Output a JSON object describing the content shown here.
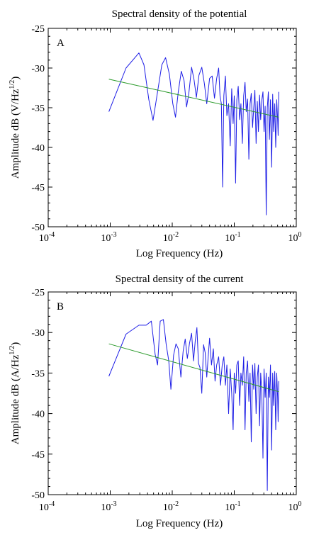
{
  "chart_data": [
    {
      "type": "line",
      "panel_label": "A",
      "title": "Spectral density of the potential",
      "xlabel": "Log Frequency (Hz)",
      "ylabel": {
        "prefix": "Amplitude dB (V/Hz",
        "sup": "1/2",
        "suffix": ")"
      },
      "xscale": "log",
      "xlim": [
        0.0001,
        1
      ],
      "ylim": [
        -50,
        -25
      ],
      "xticks": [
        {
          "value": 0.0001,
          "base": "10",
          "exp": "-4"
        },
        {
          "value": 0.001,
          "base": "10",
          "exp": "-3"
        },
        {
          "value": 0.01,
          "base": "10",
          "exp": "-2"
        },
        {
          "value": 0.1,
          "base": "10",
          "exp": "-1"
        },
        {
          "value": 1,
          "base": "10",
          "exp": "0"
        }
      ],
      "yticks": [
        -50,
        -45,
        -40,
        -35,
        -30,
        -25
      ],
      "series": [
        {
          "color": "#1f1fe6",
          "points": [
            [
              0.00095,
              -35.5
            ],
            [
              0.0018,
              -30.0
            ],
            [
              0.0029,
              -28.1
            ],
            [
              0.0035,
              -29.6
            ],
            [
              0.0042,
              -34.0
            ],
            [
              0.0049,
              -36.6
            ],
            [
              0.0058,
              -33.0
            ],
            [
              0.0068,
              -29.6
            ],
            [
              0.0078,
              -28.7
            ],
            [
              0.009,
              -30.8
            ],
            [
              0.0102,
              -34.5
            ],
            [
              0.0113,
              -36.2
            ],
            [
              0.0125,
              -33.0
            ],
            [
              0.014,
              -30.4
            ],
            [
              0.0155,
              -31.6
            ],
            [
              0.017,
              -34.9
            ],
            [
              0.0185,
              -33.2
            ],
            [
              0.0205,
              -29.9
            ],
            [
              0.0225,
              -31.5
            ],
            [
              0.0245,
              -33.7
            ],
            [
              0.027,
              -30.9
            ],
            [
              0.03,
              -29.9
            ],
            [
              0.033,
              -32.0
            ],
            [
              0.036,
              -34.5
            ],
            [
              0.04,
              -31.3
            ],
            [
              0.044,
              -31.0
            ],
            [
              0.048,
              -33.8
            ],
            [
              0.052,
              -31.3
            ],
            [
              0.056,
              -30.0
            ],
            [
              0.059,
              -33.5
            ],
            [
              0.062,
              -34.5
            ],
            [
              0.065,
              -45.0
            ],
            [
              0.068,
              -33.5
            ],
            [
              0.072,
              -31.0
            ],
            [
              0.076,
              -36.0
            ],
            [
              0.081,
              -34.5
            ],
            [
              0.086,
              -39.8
            ],
            [
              0.091,
              -32.6
            ],
            [
              0.096,
              -37.0
            ],
            [
              0.1,
              -33.5
            ],
            [
              0.105,
              -44.5
            ],
            [
              0.11,
              -34.0
            ],
            [
              0.116,
              -32.3
            ],
            [
              0.122,
              -36.5
            ],
            [
              0.128,
              -34.5
            ],
            [
              0.135,
              -39.5
            ],
            [
              0.142,
              -33.5
            ],
            [
              0.149,
              -31.8
            ],
            [
              0.156,
              -35.5
            ],
            [
              0.164,
              -33.9
            ],
            [
              0.172,
              -41.5
            ],
            [
              0.18,
              -34.5
            ],
            [
              0.188,
              -33.2
            ],
            [
              0.197,
              -37.5
            ],
            [
              0.206,
              -35.0
            ],
            [
              0.215,
              -32.8
            ],
            [
              0.225,
              -39.5
            ],
            [
              0.235,
              -34.2
            ],
            [
              0.245,
              -38.0
            ],
            [
              0.256,
              -33.4
            ],
            [
              0.267,
              -36.5
            ],
            [
              0.278,
              -34.0
            ],
            [
              0.29,
              -33.0
            ],
            [
              0.302,
              -38.0
            ],
            [
              0.315,
              -34.8
            ],
            [
              0.328,
              -48.5
            ],
            [
              0.341,
              -35.0
            ],
            [
              0.355,
              -33.0
            ],
            [
              0.369,
              -39.0
            ],
            [
              0.384,
              -34.0
            ],
            [
              0.4,
              -42.5
            ],
            [
              0.416,
              -33.3
            ],
            [
              0.432,
              -38.0
            ],
            [
              0.449,
              -34.5
            ],
            [
              0.466,
              -40.0
            ],
            [
              0.484,
              -34.0
            ],
            [
              0.5,
              -36.5
            ],
            [
              0.51,
              -38.5
            ],
            [
              0.52,
              -33.0
            ]
          ]
        },
        {
          "color": "#2c9b2c",
          "points": [
            [
              0.00095,
              -31.4
            ],
            [
              0.52,
              -36.2
            ]
          ]
        }
      ]
    },
    {
      "type": "line",
      "panel_label": "B",
      "title": "Spectral density of the current",
      "xlabel": "Log Frequency (Hz)",
      "ylabel": {
        "prefix": "Amplitude dB (A/Hz",
        "sup": "1/2",
        "suffix": ")"
      },
      "xscale": "log",
      "xlim": [
        0.0001,
        1
      ],
      "ylim": [
        -50,
        -25
      ],
      "xticks": [
        {
          "value": 0.0001,
          "base": "10",
          "exp": "-4"
        },
        {
          "value": 0.001,
          "base": "10",
          "exp": "-3"
        },
        {
          "value": 0.01,
          "base": "10",
          "exp": "-2"
        },
        {
          "value": 0.1,
          "base": "10",
          "exp": "-1"
        },
        {
          "value": 1,
          "base": "10",
          "exp": "0"
        }
      ],
      "yticks": [
        -50,
        -45,
        -40,
        -35,
        -30,
        -25
      ],
      "series": [
        {
          "color": "#1f1fe6",
          "points": [
            [
              0.00095,
              -35.4
            ],
            [
              0.0018,
              -30.2
            ],
            [
              0.0029,
              -29.1
            ],
            [
              0.0038,
              -29.1
            ],
            [
              0.0046,
              -28.6
            ],
            [
              0.0053,
              -32.7
            ],
            [
              0.0058,
              -34.0
            ],
            [
              0.0064,
              -28.6
            ],
            [
              0.0072,
              -28.4
            ],
            [
              0.008,
              -31.5
            ],
            [
              0.0088,
              -33.5
            ],
            [
              0.0095,
              -37.0
            ],
            [
              0.0105,
              -32.8
            ],
            [
              0.0115,
              -31.4
            ],
            [
              0.0125,
              -32.0
            ],
            [
              0.0138,
              -35.5
            ],
            [
              0.015,
              -32.3
            ],
            [
              0.0162,
              -30.8
            ],
            [
              0.0175,
              -33.2
            ],
            [
              0.019,
              -31.3
            ],
            [
              0.0205,
              -30.1
            ],
            [
              0.022,
              -33.5
            ],
            [
              0.0235,
              -31.0
            ],
            [
              0.025,
              -29.4
            ],
            [
              0.0265,
              -33.8
            ],
            [
              0.028,
              -34.3
            ],
            [
              0.03,
              -37.5
            ],
            [
              0.032,
              -31.5
            ],
            [
              0.034,
              -32.5
            ],
            [
              0.036,
              -35.5
            ],
            [
              0.038,
              -33.0
            ],
            [
              0.04,
              -30.7
            ],
            [
              0.043,
              -34.0
            ],
            [
              0.046,
              -32.0
            ],
            [
              0.049,
              -36.0
            ],
            [
              0.052,
              -34.0
            ],
            [
              0.056,
              -33.0
            ],
            [
              0.06,
              -36.5
            ],
            [
              0.064,
              -34.0
            ],
            [
              0.068,
              -33.0
            ],
            [
              0.072,
              -36.5
            ],
            [
              0.076,
              -34.0
            ],
            [
              0.081,
              -40.0
            ],
            [
              0.086,
              -34.5
            ],
            [
              0.091,
              -37.5
            ],
            [
              0.096,
              -42.0
            ],
            [
              0.1,
              -35.0
            ],
            [
              0.105,
              -37.5
            ],
            [
              0.11,
              -34.0
            ],
            [
              0.116,
              -33.5
            ],
            [
              0.122,
              -39.0
            ],
            [
              0.128,
              -35.0
            ],
            [
              0.135,
              -36.5
            ],
            [
              0.142,
              -33.0
            ],
            [
              0.149,
              -42.0
            ],
            [
              0.156,
              -35.0
            ],
            [
              0.164,
              -33.5
            ],
            [
              0.172,
              -38.5
            ],
            [
              0.18,
              -35.0
            ],
            [
              0.188,
              -43.5
            ],
            [
              0.197,
              -34.0
            ],
            [
              0.206,
              -37.0
            ],
            [
              0.215,
              -33.8
            ],
            [
              0.225,
              -40.0
            ],
            [
              0.235,
              -35.5
            ],
            [
              0.245,
              -34.0
            ],
            [
              0.256,
              -41.5
            ],
            [
              0.267,
              -35.0
            ],
            [
              0.278,
              -37.5
            ],
            [
              0.29,
              -45.5
            ],
            [
              0.302,
              -34.5
            ],
            [
              0.315,
              -38.0
            ],
            [
              0.328,
              -35.0
            ],
            [
              0.341,
              -49.5
            ],
            [
              0.355,
              -35.5
            ],
            [
              0.369,
              -38.0
            ],
            [
              0.384,
              -34.0
            ],
            [
              0.4,
              -44.5
            ],
            [
              0.416,
              -35.0
            ],
            [
              0.432,
              -39.0
            ],
            [
              0.449,
              -34.8
            ],
            [
              0.466,
              -42.0
            ],
            [
              0.484,
              -35.0
            ],
            [
              0.5,
              -38.0
            ],
            [
              0.51,
              -41.0
            ],
            [
              0.52,
              -36.0
            ]
          ]
        },
        {
          "color": "#2c9b2c",
          "points": [
            [
              0.00095,
              -31.4
            ],
            [
              0.52,
              -37.3
            ]
          ]
        }
      ]
    }
  ]
}
